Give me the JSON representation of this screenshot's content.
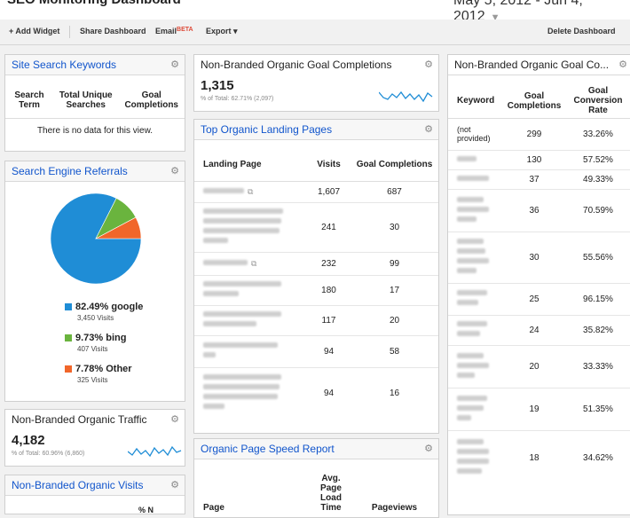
{
  "header": {
    "title": "SEO Monitoring Dashboard",
    "date_range": "May 5, 2012 - Jun 4, 2012"
  },
  "toolbar": {
    "add_widget": "+ Add Widget",
    "share": "Share Dashboard",
    "email": "Email",
    "beta": "BETA",
    "export": "Export ▾",
    "delete": "Delete Dashboard"
  },
  "colors": {
    "blue": "#1f8dd6",
    "green": "#6ab43e",
    "orange": "#f1662a",
    "link": "#1155cc"
  },
  "site_search": {
    "title": "Site Search Keywords",
    "col1": "Search Term",
    "col2": "Total Unique Searches",
    "col3": "Goal Completions",
    "empty": "There is no data for this view."
  },
  "referrals": {
    "title": "Search Engine Referrals",
    "items": [
      {
        "label": "82.49% google",
        "sub": "3,450 Visits",
        "value": 82.49
      },
      {
        "label": "9.73% bing",
        "sub": "407 Visits",
        "value": 9.73
      },
      {
        "label": "7.78% Other",
        "sub": "325 Visits",
        "value": 7.78
      }
    ]
  },
  "organic_traffic": {
    "title": "Non-Branded Organic Traffic",
    "value": "4,182",
    "pct": "% of Total: 60.96% (6,860)"
  },
  "organic_visits": {
    "title": "Non-Branded Organic Visits",
    "col_partial": "% N"
  },
  "goal_completions": {
    "title": "Non-Branded Organic Goal Completions",
    "value": "1,315",
    "pct": "% of Total: 62.71% (2,097)"
  },
  "landing": {
    "title": "Top Organic Landing Pages",
    "col1": "Landing Page",
    "col2": "Visits",
    "col3": "Goal Completions",
    "rows": [
      {
        "visits": "1,607",
        "goals": "687"
      },
      {
        "visits": "241",
        "goals": "30"
      },
      {
        "visits": "232",
        "goals": "99"
      },
      {
        "visits": "180",
        "goals": "17"
      },
      {
        "visits": "117",
        "goals": "20"
      },
      {
        "visits": "94",
        "goals": "58"
      },
      {
        "visits": "94",
        "goals": "16"
      }
    ]
  },
  "speed": {
    "title": "Organic Page Speed Report",
    "col1": "Page",
    "col2": "Avg. Page Load Time",
    "col3": "Pageviews"
  },
  "goal_table": {
    "title": "Non-Branded Organic Goal Co...",
    "col1": "Keyword",
    "col2": "Goal Completions",
    "col3": "Goal Conversion Rate",
    "rows": [
      {
        "keyword": "(not provided)",
        "goals": "299",
        "rate": "33.26%"
      },
      {
        "keyword": "",
        "goals": "130",
        "rate": "57.52%"
      },
      {
        "keyword": "",
        "goals": "37",
        "rate": "49.33%"
      },
      {
        "keyword": "",
        "goals": "36",
        "rate": "70.59%"
      },
      {
        "keyword": "",
        "goals": "30",
        "rate": "55.56%"
      },
      {
        "keyword": "",
        "goals": "25",
        "rate": "96.15%"
      },
      {
        "keyword": "",
        "goals": "24",
        "rate": "35.82%"
      },
      {
        "keyword": "",
        "goals": "20",
        "rate": "33.33%"
      },
      {
        "keyword": "",
        "goals": "19",
        "rate": "51.35%"
      },
      {
        "keyword": "",
        "goals": "18",
        "rate": "34.62%"
      }
    ]
  },
  "icons": {
    "gear": "gear-icon",
    "external": "external-link-icon",
    "chevron": "chevron-down-icon"
  }
}
